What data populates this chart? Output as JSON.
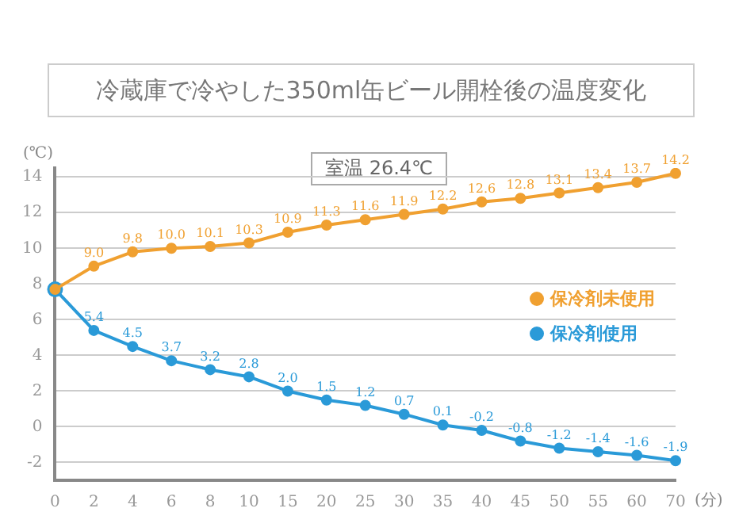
{
  "chart_data": {
    "type": "line",
    "title": "冷蔵庫で冷やした350ml缶ビール開栓後の温度変化",
    "ylabel": "(℃)",
    "xlabel": "(分)",
    "annotations": [
      "室温  26.4℃"
    ],
    "categories": [
      "0",
      "2",
      "4",
      "6",
      "8",
      "10",
      "15",
      "20",
      "25",
      "30",
      "35",
      "40",
      "45",
      "50",
      "55",
      "60",
      "70"
    ],
    "series": [
      {
        "name": "保冷剤未使用",
        "color": "#f0a030",
        "values": [
          7.7,
          9.0,
          9.8,
          10.0,
          10.1,
          10.3,
          10.9,
          11.3,
          11.6,
          11.9,
          12.2,
          12.6,
          12.8,
          13.1,
          13.4,
          13.7,
          14.2
        ],
        "value_labels": [
          null,
          "9.0",
          "9.8",
          "10.0",
          "10.1",
          "10.3",
          "10.9",
          "11.3",
          "11.6",
          "11.9",
          "12.2",
          "12.6",
          "12.8",
          "13.1",
          "13.4",
          "13.7",
          "14.2"
        ]
      },
      {
        "name": "保冷剤使用",
        "color": "#2a9ad8",
        "values": [
          7.7,
          5.4,
          4.5,
          3.7,
          3.2,
          2.8,
          2.0,
          1.5,
          1.2,
          0.7,
          0.1,
          -0.2,
          -0.8,
          -1.2,
          -1.4,
          -1.6,
          -1.9
        ],
        "value_labels": [
          null,
          "5.4",
          "4.5",
          "3.7",
          "3.2",
          "2.8",
          "2.0",
          "1.5",
          "1.2",
          "0.7",
          "0.1",
          "-0.2",
          "-0.8",
          "-1.2",
          "-1.4",
          "-1.6",
          "-1.9"
        ]
      }
    ],
    "ylim": [
      -3,
      14.5
    ],
    "yticks": [
      -2,
      0,
      2,
      4,
      6,
      8,
      10,
      12,
      14
    ],
    "grid": "y",
    "legend": "right",
    "marker": "circle",
    "line_style": "solid"
  }
}
